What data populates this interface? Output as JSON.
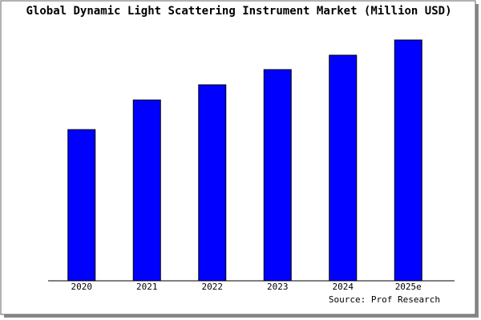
{
  "chart_data": {
    "type": "bar",
    "title": "Global Dynamic Light Scattering Instrument Market (Million USD)",
    "categories": [
      "2020",
      "2021",
      "2022",
      "2023",
      "2024",
      "2025e"
    ],
    "values": [
      189,
      226,
      245,
      264,
      282,
      301
    ],
    "color": "#0000ff",
    "source": "Source: Prof Research"
  }
}
